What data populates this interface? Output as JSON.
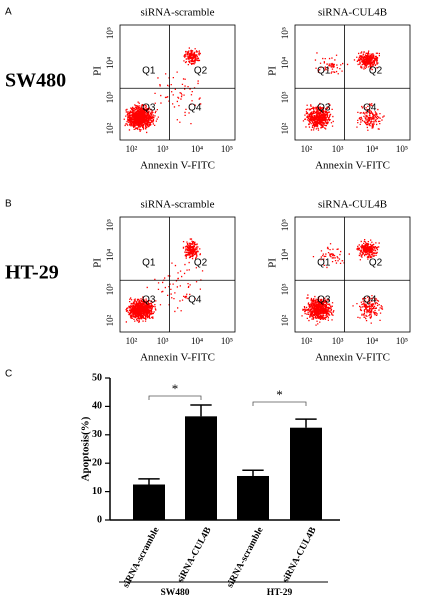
{
  "panels": [
    {
      "label": "A",
      "cell_line": "SW480",
      "plots": [
        {
          "title": "siRNA-scramble",
          "xlabel": "Annexin V-FITC",
          "ylabel": "PI",
          "quadrants": [
            "Q1",
            "Q2",
            "Q3",
            "Q4"
          ]
        },
        {
          "title": "siRNA-CUL4B",
          "xlabel": "Annexin V-FITC",
          "ylabel": "PI",
          "quadrants": [
            "Q1",
            "Q2",
            "Q3",
            "Q4"
          ]
        }
      ]
    },
    {
      "label": "B",
      "cell_line": "HT-29",
      "plots": [
        {
          "title": "siRNA-scramble",
          "xlabel": "Annexin V-FITC",
          "ylabel": "PI",
          "quadrants": [
            "Q1",
            "Q2",
            "Q3",
            "Q4"
          ]
        },
        {
          "title": "siRNA-CUL4B",
          "xlabel": "Annexin V-FITC",
          "ylabel": "PI",
          "quadrants": [
            "Q1",
            "Q2",
            "Q3",
            "Q4"
          ]
        }
      ]
    }
  ],
  "flow_ticks": [
    "10²",
    "10³",
    "10⁴",
    "10⁵"
  ],
  "chart_data": {
    "type": "bar",
    "label": "C",
    "ylabel": "Apoptosis(%)",
    "categories": [
      "siRNA-scramble",
      "siRNA-CUL4B",
      "siRNA-scramble",
      "siRNA-CUL4B"
    ],
    "values": [
      12.5,
      36.5,
      15.5,
      32.5
    ],
    "errors": [
      2,
      4,
      2,
      3
    ],
    "color": "#000000",
    "groups": [
      "SW480",
      "HT-29"
    ],
    "significance": [
      "*",
      "*"
    ],
    "ylim": [
      0,
      50
    ],
    "yticks": [
      0,
      10,
      20,
      30,
      40,
      50
    ]
  }
}
